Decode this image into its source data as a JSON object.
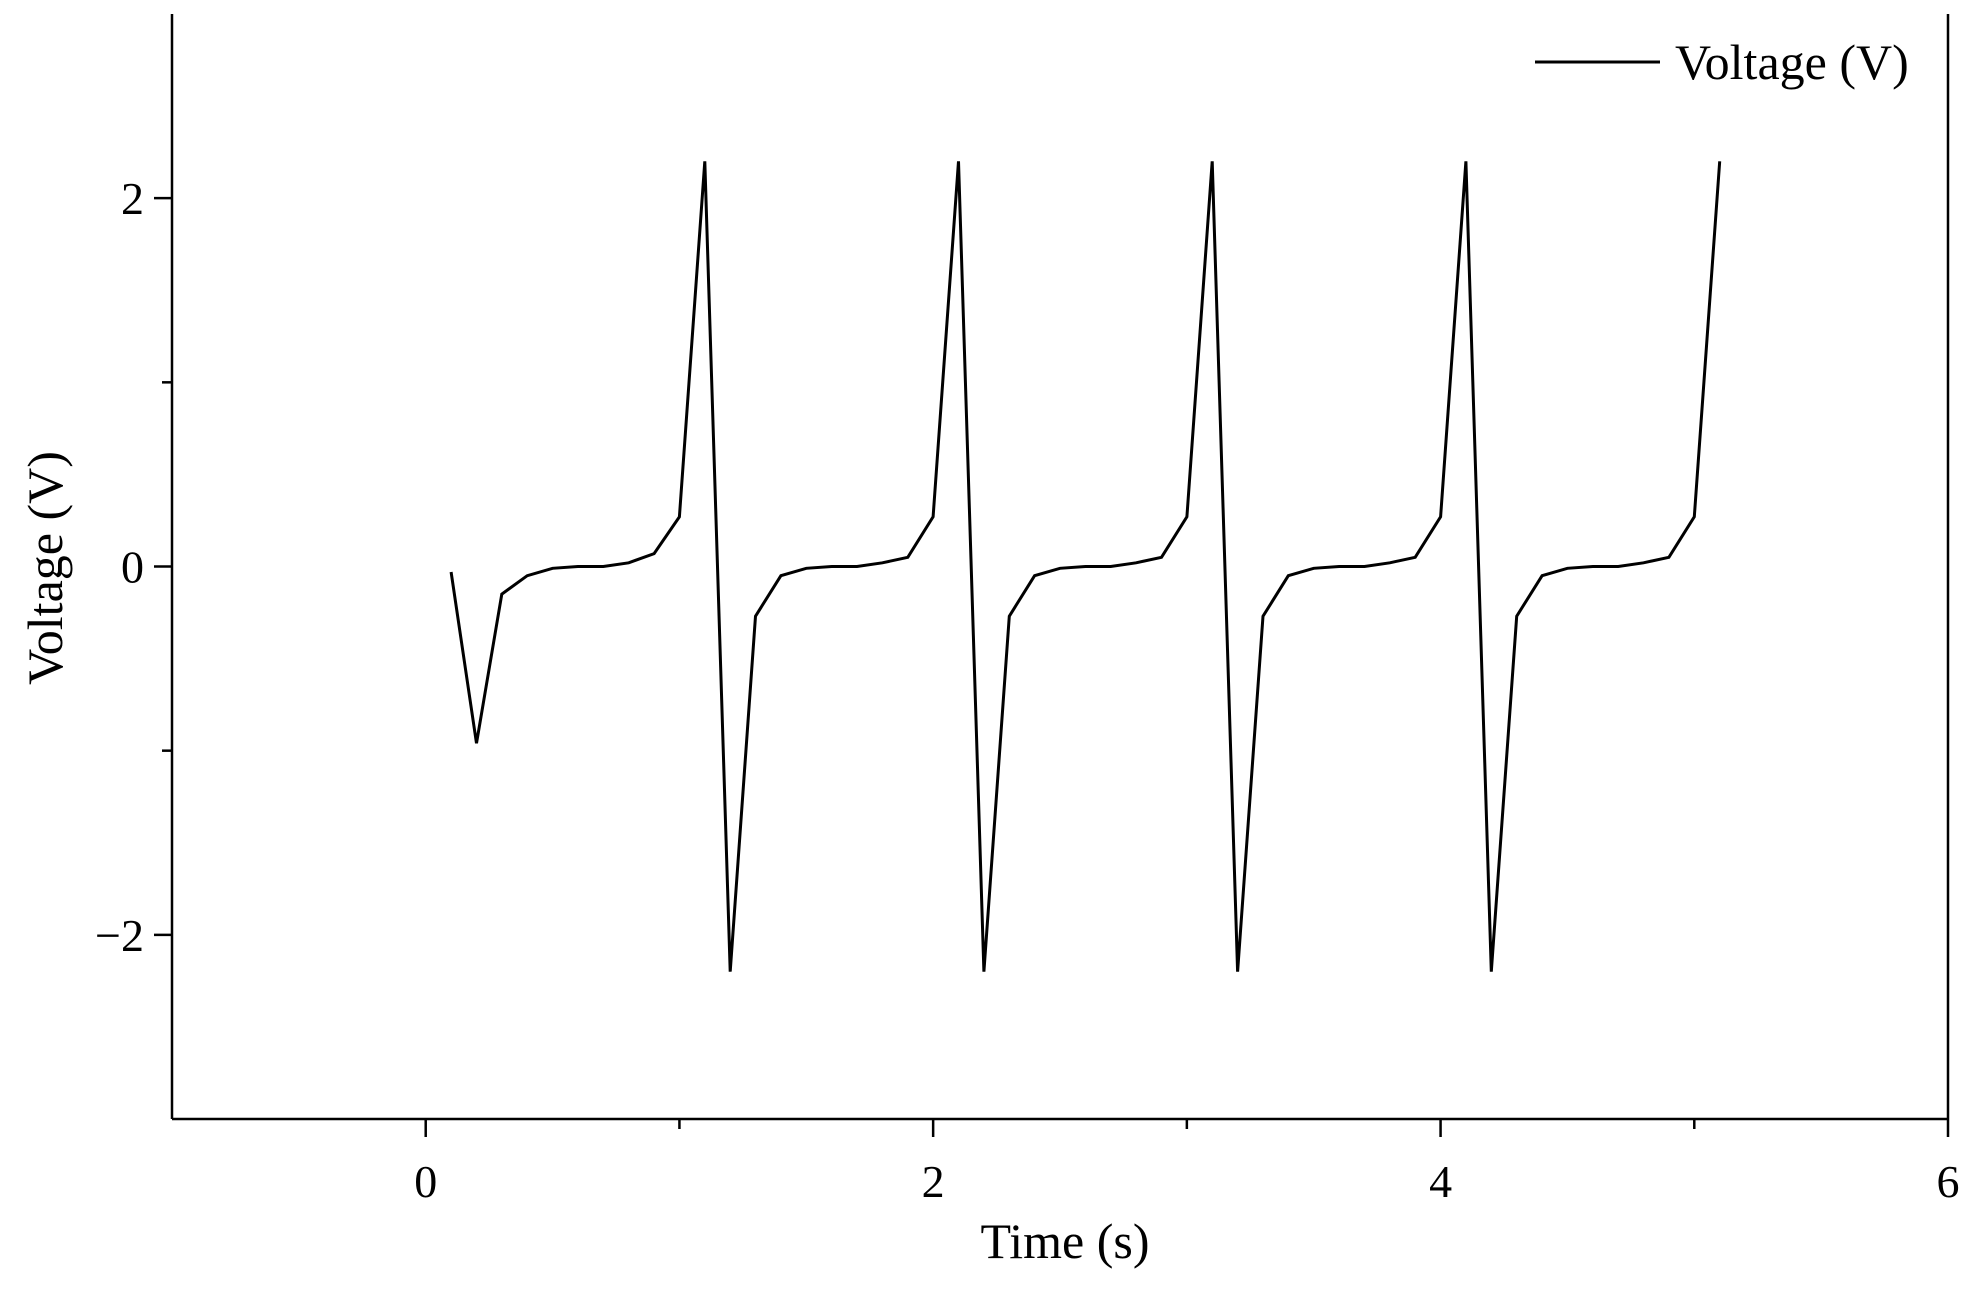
{
  "chart_data": {
    "type": "line",
    "xlabel": "Time (s)",
    "ylabel": "Voltage (V)",
    "xlim": [
      -1,
      6
    ],
    "ylim": [
      -3,
      3
    ],
    "x_ticks": [
      0,
      2,
      4,
      6
    ],
    "x_minor_ticks": [
      1,
      3,
      5
    ],
    "y_ticks": [
      -2,
      0,
      2
    ],
    "y_minor_ticks": [
      -1,
      1
    ],
    "y_tick_labels": [
      "−2",
      "0",
      "2"
    ],
    "grid": false,
    "legend_position": "top-right",
    "series": [
      {
        "name": "Voltage (V)",
        "color": "#000000",
        "x": [
          0.1,
          0.2,
          0.3,
          0.4,
          0.5,
          0.6,
          0.7,
          0.8,
          0.9,
          1.0,
          1.1,
          1.2,
          1.3,
          1.4,
          1.5,
          1.6,
          1.7,
          1.8,
          1.9,
          2.0,
          2.1,
          2.2,
          2.3,
          2.4,
          2.5,
          2.6,
          2.7,
          2.8,
          2.9,
          3.0,
          3.1,
          3.2,
          3.3,
          3.4,
          3.5,
          3.6,
          3.7,
          3.8,
          3.9,
          4.0,
          4.1,
          4.2,
          4.3,
          4.4,
          4.5,
          4.6,
          4.7,
          4.8,
          4.9,
          5.0,
          5.1
        ],
        "y": [
          -0.03,
          -0.96,
          -0.15,
          -0.05,
          -0.01,
          0.0,
          0.0,
          0.02,
          0.07,
          0.27,
          2.2,
          -2.2,
          -0.27,
          -0.05,
          -0.01,
          0.0,
          0.0,
          0.02,
          0.05,
          0.27,
          2.2,
          -2.2,
          -0.27,
          -0.05,
          -0.01,
          0.0,
          0.0,
          0.02,
          0.05,
          0.27,
          2.2,
          -2.2,
          -0.27,
          -0.05,
          -0.01,
          0.0,
          0.0,
          0.02,
          0.05,
          0.27,
          2.2,
          -2.2,
          -0.27,
          -0.05,
          -0.01,
          0.0,
          0.0,
          0.02,
          0.05,
          0.27,
          2.2
        ]
      }
    ]
  }
}
